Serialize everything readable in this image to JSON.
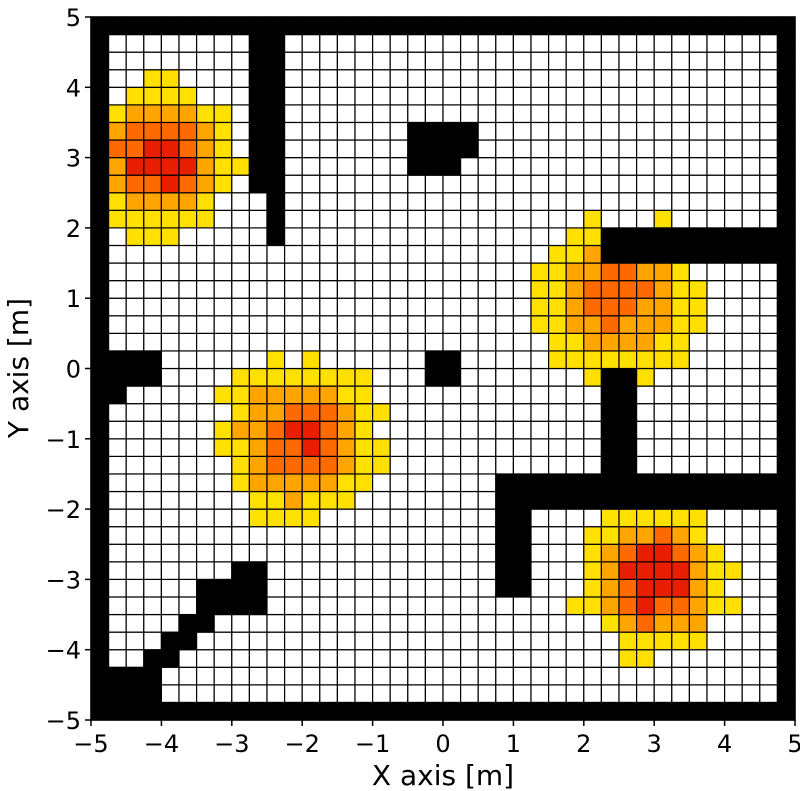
{
  "chart_data": {
    "type": "heatmap",
    "title": "",
    "xlabel": "X axis [m]",
    "ylabel": "Y axis [m]",
    "xlim": [
      -5,
      5
    ],
    "ylim": [
      -5,
      5
    ],
    "cell_size": 0.25,
    "xticks": [
      -5,
      -4,
      -3,
      -2,
      -1,
      0,
      1,
      2,
      3,
      4,
      5
    ],
    "yticks": [
      -5,
      -4,
      -3,
      -2,
      -1,
      0,
      1,
      2,
      3,
      4,
      5
    ],
    "xtick_labels": [
      "−5",
      "−4",
      "−3",
      "−2",
      "−1",
      "0",
      "1",
      "2",
      "3",
      "4",
      "5"
    ],
    "ytick_labels": [
      "−5",
      "−4",
      "−3",
      "−2",
      "−1",
      "0",
      "1",
      "2",
      "3",
      "4",
      "5"
    ],
    "grid": true,
    "colors": {
      "wall": "#000000",
      "free": "#ffffff",
      "gridline": "#000000",
      "heat_low": "#ffe000",
      "heat_mid": "#ffa500",
      "heat_high": "#e81e00"
    },
    "walls": [
      [
        -5,
        -5,
        10,
        0.25
      ],
      [
        -5,
        4.75,
        10,
        0.25
      ],
      [
        -5,
        -5,
        0.25,
        10
      ],
      [
        4.75,
        -5,
        0.25,
        10
      ],
      [
        -2.75,
        2.5,
        0.5,
        2.25
      ],
      [
        -2.5,
        1.75,
        0.25,
        0.75
      ],
      [
        -0.5,
        2.75,
        0.75,
        0.75
      ],
      [
        0.25,
        3.0,
        0.25,
        0.5
      ],
      [
        2.25,
        1.5,
        2.5,
        0.5
      ],
      [
        2.25,
        -1.5,
        0.5,
        1.5
      ],
      [
        0.75,
        -2.0,
        4.0,
        0.5
      ],
      [
        0.75,
        -3.25,
        0.5,
        1.25
      ],
      [
        -4.75,
        -0.25,
        0.75,
        0.5
      ],
      [
        -4.75,
        -0.5,
        0.25,
        0.25
      ],
      [
        -0.25,
        -0.25,
        0.5,
        0.5
      ],
      [
        -3.0,
        -3.0,
        0.5,
        0.25
      ],
      [
        -3.5,
        -3.5,
        1.0,
        0.5
      ],
      [
        -3.75,
        -3.75,
        0.5,
        0.25
      ],
      [
        -4.0,
        -4.0,
        0.5,
        0.25
      ],
      [
        -4.25,
        -4.25,
        0.5,
        0.25
      ],
      [
        -4.75,
        -4.75,
        0.75,
        0.5
      ]
    ],
    "heat_sources": [
      {
        "x": -4.0,
        "y": 3.0,
        "amplitude": 0.9,
        "radius": 1.05
      },
      {
        "x": -2.0,
        "y": -1.0,
        "amplitude": 0.82,
        "radius": 1.15
      },
      {
        "x": 2.5,
        "y": 1.0,
        "amplitude": 0.72,
        "radius": 1.2
      },
      {
        "x": 3.0,
        "y": -3.0,
        "amplitude": 0.95,
        "radius": 1.0
      }
    ]
  }
}
